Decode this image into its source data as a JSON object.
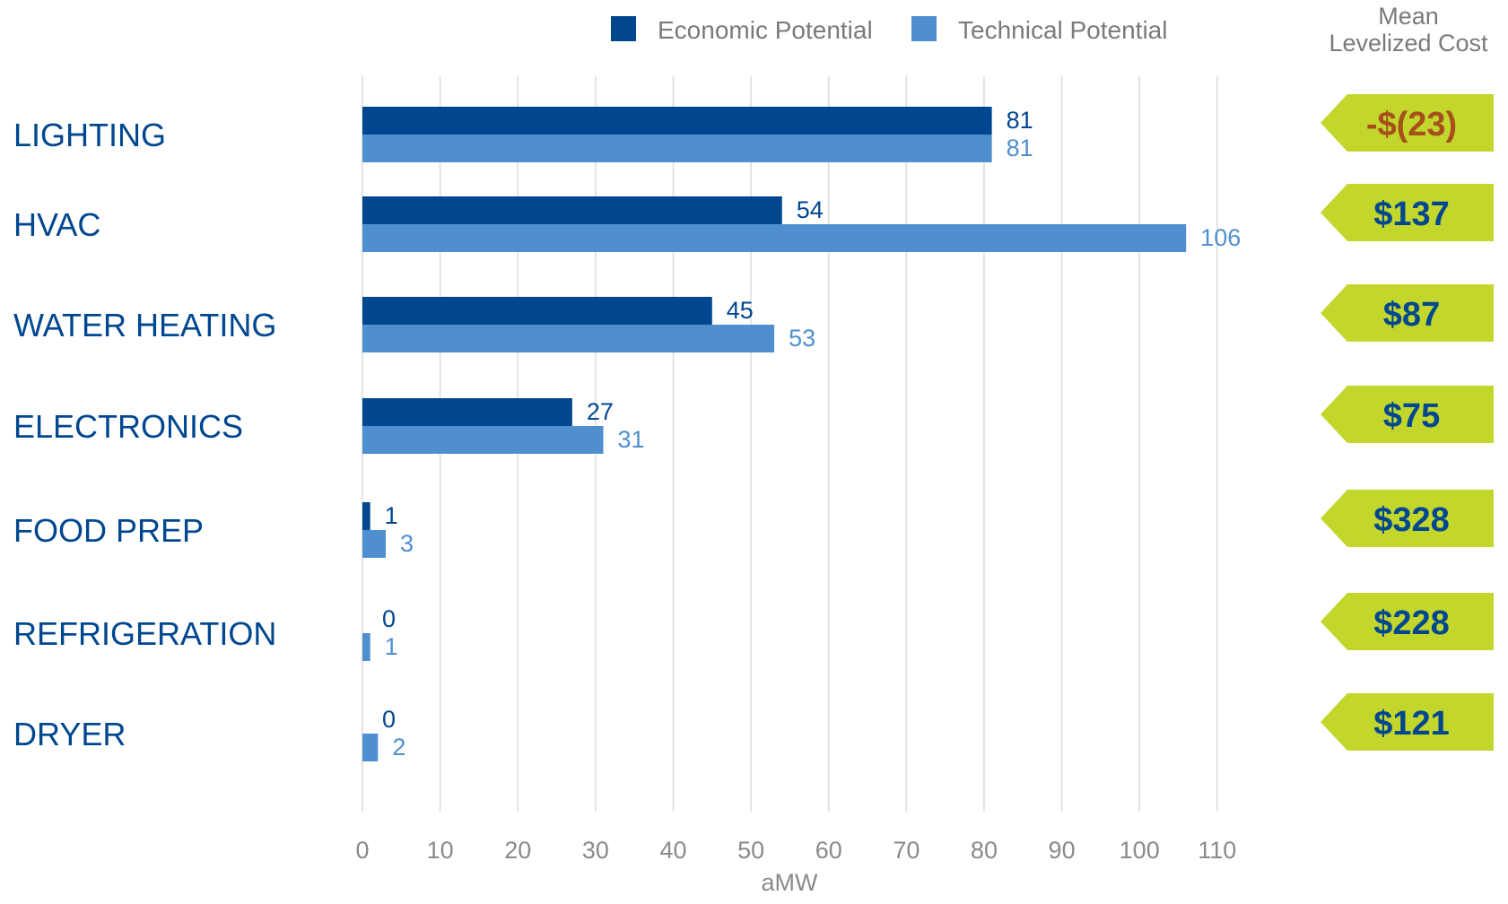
{
  "chart_data": {
    "type": "bar",
    "orientation": "horizontal",
    "categories": [
      "LIGHTING",
      "HVAC",
      "WATER HEATING",
      "ELECTRONICS",
      "FOOD PREP",
      "REFRIGERATION",
      "DRYER"
    ],
    "series": [
      {
        "name": "Economic Potential",
        "color": "#00478f",
        "values": [
          81,
          54,
          45,
          27,
          1,
          0,
          0
        ]
      },
      {
        "name": "Technical Potential",
        "color": "#4f8fcf",
        "values": [
          81,
          106,
          53,
          31,
          3,
          1,
          2
        ]
      }
    ],
    "xlabel": "aMW",
    "xlim": [
      0,
      110
    ],
    "xticks": [
      0,
      10,
      20,
      30,
      40,
      50,
      60,
      70,
      80,
      90,
      100,
      110
    ],
    "grid": true,
    "legend_position": "top"
  },
  "cost_column": {
    "header_line1": "Mean",
    "header_line2": "Levelized Cost",
    "tag_color": "#c3d62c",
    "values": [
      {
        "text": "-$(23)",
        "color": "#a6501b"
      },
      {
        "text": "$137",
        "color": "#00478f"
      },
      {
        "text": "$87",
        "color": "#00478f"
      },
      {
        "text": "$75",
        "color": "#00478f"
      },
      {
        "text": "$328",
        "color": "#00478f"
      },
      {
        "text": "$228",
        "color": "#00478f"
      },
      {
        "text": "$121",
        "color": "#00478f"
      }
    ]
  }
}
